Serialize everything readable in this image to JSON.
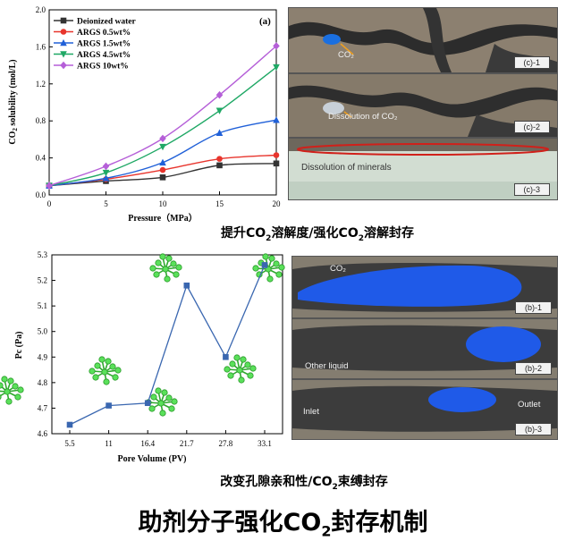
{
  "chart_data": [
    {
      "type": "line",
      "panel_label": "(a)",
      "xlabel": "Pressure（MPa）",
      "ylabel": "CO2 solubility (mol/L)",
      "x": [
        0,
        5,
        10,
        15,
        20
      ],
      "xlim": [
        0,
        20
      ],
      "ylim": [
        0,
        2.0
      ],
      "xticks": [
        "0",
        "5",
        "10",
        "15",
        "20"
      ],
      "yticks": [
        "0.0",
        "0.4",
        "0.8",
        "1.2",
        "1.6",
        "2.0"
      ],
      "legend_position": "top-left",
      "series": [
        {
          "name": "Deionized water",
          "color": "#333333",
          "marker": "square",
          "values": [
            0.1,
            0.15,
            0.19,
            0.32,
            0.34
          ]
        },
        {
          "name": "ARGS 0.5wt%",
          "color": "#e8352d",
          "marker": "circle",
          "values": [
            0.1,
            0.17,
            0.27,
            0.39,
            0.43
          ]
        },
        {
          "name": "ARGS 1.5wt%",
          "color": "#2060d8",
          "marker": "triangle-up",
          "values": [
            0.1,
            0.18,
            0.35,
            0.67,
            0.81
          ]
        },
        {
          "name": "ARGS 4.5wt%",
          "color": "#1fa865",
          "marker": "triangle-down",
          "values": [
            0.1,
            0.24,
            0.52,
            0.91,
            1.38
          ]
        },
        {
          "name": "ARGS 10wt%",
          "color": "#b55fd8",
          "marker": "diamond",
          "values": [
            0.1,
            0.31,
            0.61,
            1.08,
            1.61
          ]
        }
      ]
    },
    {
      "type": "line",
      "xlabel": "Pore Volume (PV)",
      "ylabel": "Pc (Pa)",
      "categories": [
        "5.5",
        "11",
        "16.4",
        "21.7",
        "27.8",
        "33.1"
      ],
      "ylim": [
        4.6,
        5.3
      ],
      "yticks": [
        "4.6",
        "4.7",
        "4.8",
        "4.9",
        "5.0",
        "5.1",
        "5.2",
        "5.3"
      ],
      "series": [
        {
          "color": "#3a67b0",
          "marker": "square",
          "values": [
            4.635,
            4.71,
            4.72,
            5.18,
            4.9,
            5.26
          ]
        }
      ]
    }
  ],
  "photos": {
    "c1": {
      "tag": "(c)-1",
      "label": "CO₂"
    },
    "c2": {
      "tag": "(c)-2",
      "label": "Dissolution of CO₂"
    },
    "c3": {
      "tag": "(c)-3",
      "label": "Dissolution of minerals"
    },
    "b1": {
      "tag": "(b)-1",
      "label": "CO₂"
    },
    "b2": {
      "tag": "(b)-2",
      "label": "Other liquid"
    },
    "b3": {
      "tag": "(b)-3",
      "inlet": "Inlet",
      "outlet": "Outlet"
    }
  },
  "captions": {
    "top_pre": "提升CO",
    "top_sub1": "2",
    "top_mid": "溶解度/强化CO",
    "top_sub2": "2",
    "top_post": "溶解封存",
    "mid_pre": "改变孔隙亲和性/CO",
    "mid_sub": "2",
    "mid_post": "束缚封存",
    "title_pre": "助剂分子强化CO",
    "title_sub": "2",
    "title_post": "封存机制"
  },
  "colors": {
    "accent_blue": "#1f5ae8",
    "rock_gray": "#5a5a5a",
    "molecule_green": "#3fcf3f"
  }
}
